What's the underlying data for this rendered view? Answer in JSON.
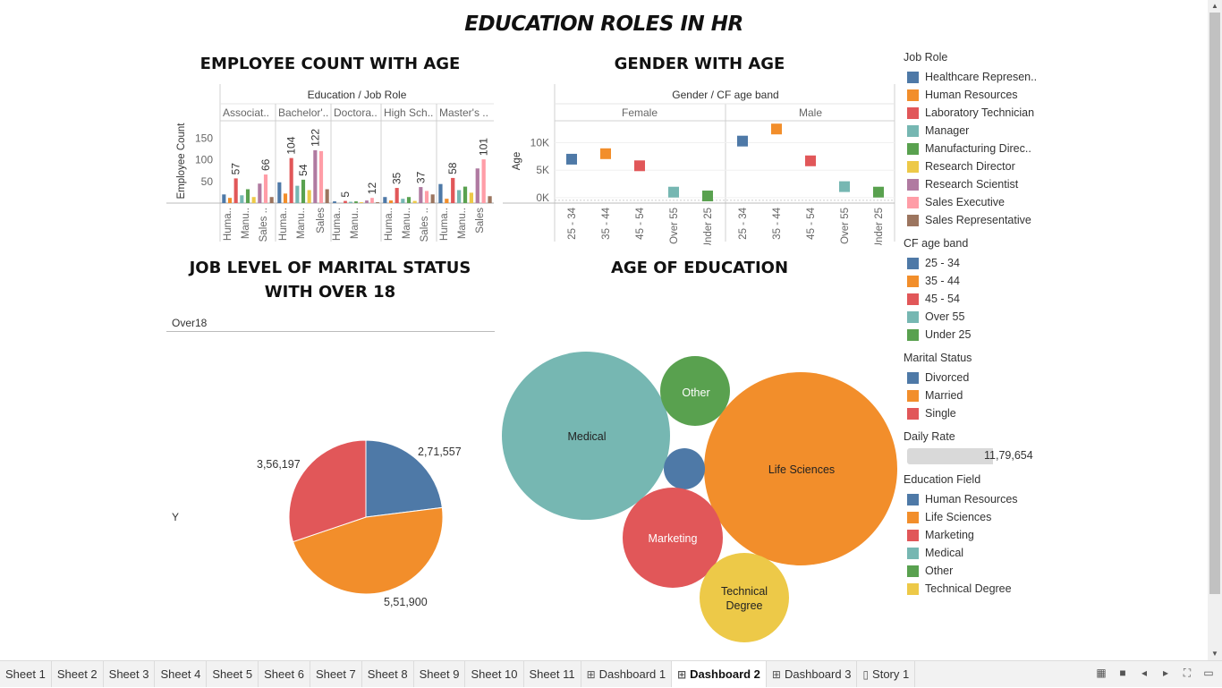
{
  "dashboard": {
    "title": "EDUCATION ROLES IN HR"
  },
  "sheets": {
    "employee_count": {
      "title": "EMPLOYEE COUNT WITH AGE",
      "header": "Education  /  Job Role",
      "y_label": "Employee Count",
      "y_ticks": [
        "150",
        "100",
        "50"
      ],
      "education_groups": [
        "Associat..",
        "Bachelor'..",
        "Doctora..",
        "High Sch..",
        "Master's .."
      ],
      "x_labels": [
        "Huma..",
        "Manu..",
        "Sales ..",
        "Huma..",
        "Manu..",
        "Sales",
        "Huma..",
        "Manu..",
        "Huma..",
        "Manu..",
        "Sales ..",
        "Huma..",
        "Manu..",
        "Sales"
      ],
      "data_labels": [
        "57",
        "66",
        "104",
        "54",
        "122",
        "5",
        "12",
        "35",
        "37",
        "58",
        "101"
      ]
    },
    "gender_age": {
      "title": "GENDER WITH AGE",
      "header": "Gender  /  CF age band",
      "genders": [
        "Female",
        "Male"
      ],
      "y_label": "Age",
      "y_ticks": [
        "10K",
        "5K",
        "0K"
      ],
      "x_labels": [
        "25 - 34",
        "35 - 44",
        "45 - 54",
        "Over 55",
        "Under 25",
        "25 - 34",
        "35 - 44",
        "45 - 54",
        "Over 55",
        "Under 25"
      ]
    },
    "marital": {
      "title": "JOB LEVEL OF MARITAL STATUS WITH OVER 18",
      "column_header": "Over18",
      "row_label": "Y",
      "slice_labels": [
        "2,71,557",
        "5,51,900",
        "3,56,197"
      ]
    },
    "education_age": {
      "title": "AGE OF EDUCATION",
      "bubble_labels": [
        "Medical",
        "Other",
        "Life Sciences",
        "Marketing",
        "Technical Degree"
      ]
    }
  },
  "chart_data": [
    {
      "type": "bar",
      "title": "EMPLOYEE COUNT WITH AGE",
      "ylabel": "Employee Count",
      "ylim": [
        0,
        190
      ],
      "groups": [
        "Associat..",
        "Bachelor'..",
        "Doctora..",
        "High Sch..",
        "Master's .."
      ],
      "series_names": [
        "Healthcare Represen..",
        "Human Resources",
        "Laboratory Technician",
        "Manager",
        "Manufacturing Direc..",
        "Research Director",
        "Research Scientist",
        "Sales Executive",
        "Sales Representative"
      ],
      "values": [
        [
          20,
          12,
          57,
          18,
          32,
          14,
          45,
          66,
          14
        ],
        [
          48,
          22,
          104,
          40,
          54,
          30,
          122,
          120,
          32
        ],
        [
          4,
          0,
          5,
          3,
          4,
          2,
          6,
          12,
          2
        ],
        [
          14,
          6,
          35,
          10,
          14,
          5,
          37,
          28,
          20
        ],
        [
          44,
          10,
          58,
          30,
          38,
          24,
          80,
          101,
          16
        ]
      ],
      "labeled": [
        [
          2,
          7
        ],
        [
          2,
          4,
          6
        ],
        [
          2,
          7
        ],
        [
          2,
          6
        ],
        [
          2,
          7
        ]
      ]
    },
    {
      "type": "scatter",
      "title": "GENDER WITH AGE",
      "ylabel": "Age",
      "ylim": [
        -1000,
        14000
      ],
      "categories": [
        "25 - 34",
        "35 - 44",
        "45 - 54",
        "Over 55",
        "Under 25"
      ],
      "series": [
        {
          "name": "Female",
          "values": [
            7000,
            8000,
            5800,
            1000,
            300
          ]
        },
        {
          "name": "Male",
          "values": [
            10300,
            12500,
            6700,
            2000,
            1000
          ]
        }
      ]
    },
    {
      "type": "pie",
      "title": "JOB LEVEL OF MARITAL STATUS WITH OVER 18",
      "categories": [
        "Divorced",
        "Married",
        "Single"
      ],
      "values": [
        271557,
        551900,
        356197
      ]
    },
    {
      "type": "bubble",
      "title": "AGE OF EDUCATION",
      "categories": [
        "Medical",
        "Other",
        "Life Sciences",
        "Human Resources",
        "Marketing",
        "Technical Degree"
      ],
      "values": [
        14000,
        2500,
        18500,
        800,
        5000,
        4000
      ]
    }
  ],
  "legends": {
    "job_role": {
      "title": "Job Role",
      "items": [
        {
          "label": "Healthcare Represen..",
          "color": "#4e79a7"
        },
        {
          "label": "Human Resources",
          "color": "#f28e2b"
        },
        {
          "label": "Laboratory Technician",
          "color": "#e15759"
        },
        {
          "label": "Manager",
          "color": "#76b7b2"
        },
        {
          "label": "Manufacturing Direc..",
          "color": "#59a14f"
        },
        {
          "label": "Research Director",
          "color": "#edc948"
        },
        {
          "label": "Research Scientist",
          "color": "#b07aa1"
        },
        {
          "label": "Sales Executive",
          "color": "#ff9da7"
        },
        {
          "label": "Sales Representative",
          "color": "#9c755f"
        }
      ]
    },
    "age_band": {
      "title": "CF age band",
      "items": [
        {
          "label": "25 - 34",
          "color": "#4e79a7"
        },
        {
          "label": "35 - 44",
          "color": "#f28e2b"
        },
        {
          "label": "45 - 54",
          "color": "#e15759"
        },
        {
          "label": "Over 55",
          "color": "#76b7b2"
        },
        {
          "label": "Under 25",
          "color": "#59a14f"
        }
      ]
    },
    "marital_status": {
      "title": "Marital Status",
      "items": [
        {
          "label": "Divorced",
          "color": "#4e79a7"
        },
        {
          "label": "Married",
          "color": "#f28e2b"
        },
        {
          "label": "Single",
          "color": "#e15759"
        }
      ]
    },
    "daily_rate": {
      "title": "Daily Rate",
      "value": "11,79,654"
    },
    "education_field": {
      "title": "Education Field",
      "items": [
        {
          "label": "Human Resources",
          "color": "#4e79a7"
        },
        {
          "label": "Life Sciences",
          "color": "#f28e2b"
        },
        {
          "label": "Marketing",
          "color": "#e15759"
        },
        {
          "label": "Medical",
          "color": "#76b7b2"
        },
        {
          "label": "Other",
          "color": "#59a14f"
        },
        {
          "label": "Technical Degree",
          "color": "#edc948"
        }
      ]
    }
  },
  "tabs": [
    {
      "label": "Sheet 1",
      "icon": ""
    },
    {
      "label": "Sheet 2",
      "icon": ""
    },
    {
      "label": "Sheet 3",
      "icon": ""
    },
    {
      "label": "Sheet 4",
      "icon": ""
    },
    {
      "label": "Sheet 5",
      "icon": ""
    },
    {
      "label": "Sheet 6",
      "icon": ""
    },
    {
      "label": "Sheet 7",
      "icon": ""
    },
    {
      "label": "Sheet 8",
      "icon": ""
    },
    {
      "label": "Sheet 9",
      "icon": ""
    },
    {
      "label": "Sheet 10",
      "icon": ""
    },
    {
      "label": "Sheet 11",
      "icon": ""
    },
    {
      "label": "Dashboard 1",
      "icon": "dashboard-icon"
    },
    {
      "label": "Dashboard 2",
      "icon": "dashboard-icon",
      "active": true
    },
    {
      "label": "Dashboard 3",
      "icon": "dashboard-icon"
    },
    {
      "label": "Story 1",
      "icon": "story-icon"
    }
  ],
  "tab_controls": [
    "grid-view-icon",
    "filmstrip-icon",
    "prev-icon",
    "next-icon",
    "fullscreen-icon",
    "present-icon"
  ]
}
